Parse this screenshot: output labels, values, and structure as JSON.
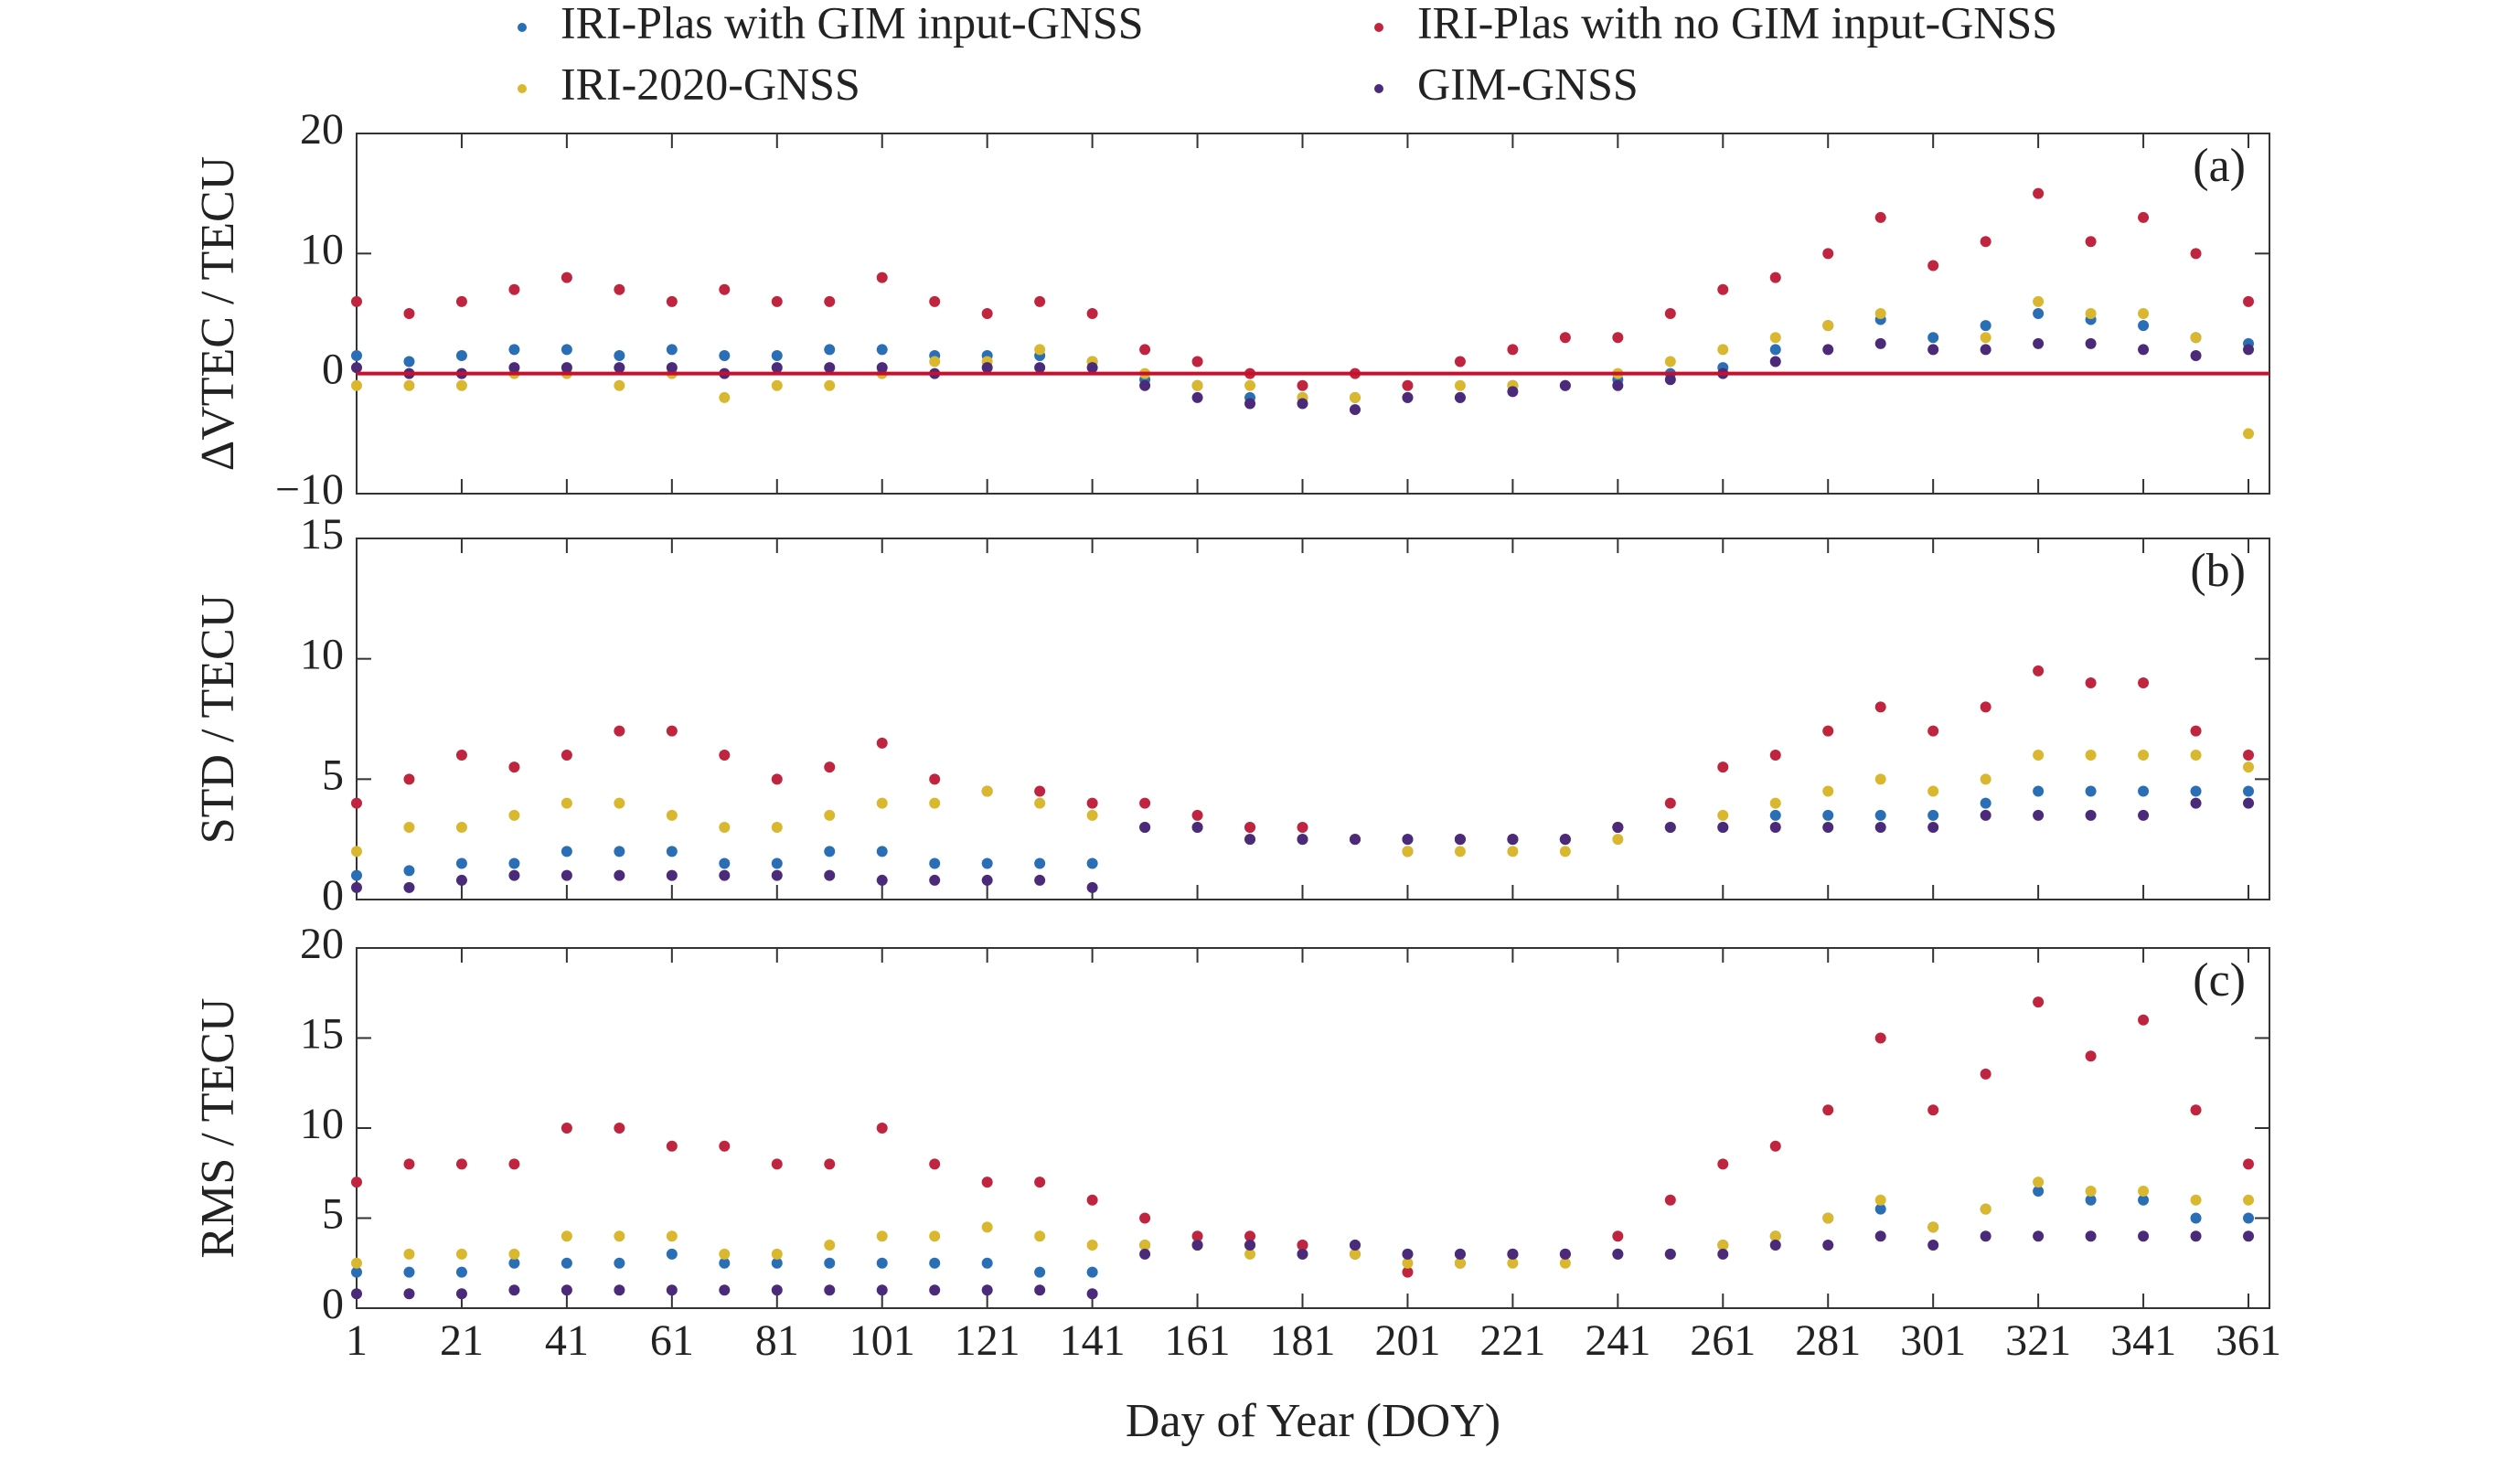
{
  "chart_data": [
    {
      "type": "scatter",
      "legend": "top",
      "annotation": "(a)",
      "ylabel": "ΔVTEC / TECU",
      "reference_line": {
        "value": 0,
        "color": "#c8102e"
      },
      "xlim": [
        1,
        365
      ],
      "ylim": [
        -10,
        20
      ],
      "yticks": [
        {
          "value": -10,
          "label": "−10"
        },
        0,
        10,
        20
      ],
      "x": [
        1,
        11,
        21,
        31,
        41,
        51,
        61,
        71,
        81,
        91,
        101,
        111,
        121,
        131,
        141,
        151,
        161,
        171,
        181,
        191,
        201,
        211,
        221,
        231,
        241,
        251,
        261,
        271,
        281,
        291,
        301,
        311,
        321,
        331,
        341,
        351,
        361
      ],
      "series": [
        {
          "name": "IRI-Plas with GIM input-GNSS",
          "color": "#2a6fb5",
          "values": [
            1.5,
            1,
            1.5,
            2,
            2,
            1.5,
            2,
            1.5,
            1.5,
            2,
            2,
            1.5,
            1.5,
            1.5,
            1,
            -0.5,
            -1,
            -2,
            -2,
            -2,
            -2,
            -2,
            -1,
            -1,
            -0.5,
            0,
            0.5,
            2,
            4,
            4.5,
            3,
            4,
            5,
            4.5,
            4,
            3,
            2.5
          ]
        },
        {
          "name": "IRI-Plas with no GIM input-GNSS",
          "color": "#c0253f",
          "values": [
            6,
            5,
            6,
            7,
            8,
            7,
            6,
            7,
            6,
            6,
            8,
            6,
            5,
            6,
            5,
            2,
            1,
            0,
            -1,
            0,
            -1,
            1,
            2,
            3,
            3,
            5,
            7,
            8,
            10,
            13,
            9,
            11,
            15,
            11,
            13,
            10,
            6
          ]
        },
        {
          "name": "IRI-2020-GNSS",
          "color": "#d9b830",
          "values": [
            -1,
            -1,
            -1,
            0,
            0,
            -1,
            0,
            -2,
            -1,
            -1,
            0,
            1,
            1,
            2,
            1,
            0,
            -1,
            -1,
            -2,
            -2,
            -2,
            -1,
            -1,
            -1,
            0,
            1,
            2,
            3,
            4,
            5,
            2,
            3,
            6,
            5,
            5,
            3,
            -5
          ]
        },
        {
          "name": "GIM-GNSS",
          "color": "#4b2a7a",
          "values": [
            0.5,
            0,
            0,
            0.5,
            0.5,
            0.5,
            0.5,
            0,
            0.5,
            0.5,
            0.5,
            0,
            0.5,
            0.5,
            0.5,
            -1,
            -2,
            -2.5,
            -2.5,
            -3,
            -2,
            -2,
            -1.5,
            -1,
            -1,
            -0.5,
            0,
            1,
            2,
            2.5,
            2,
            2,
            2.5,
            2.5,
            2,
            1.5,
            2
          ]
        }
      ]
    },
    {
      "type": "scatter",
      "annotation": "(b)",
      "ylabel": "STD / TECU",
      "xlim": [
        1,
        365
      ],
      "ylim": [
        0,
        15
      ],
      "yticks": [
        0,
        5,
        10,
        15
      ],
      "x": [
        1,
        11,
        21,
        31,
        41,
        51,
        61,
        71,
        81,
        91,
        101,
        111,
        121,
        131,
        141,
        151,
        161,
        171,
        181,
        191,
        201,
        211,
        221,
        231,
        241,
        251,
        261,
        271,
        281,
        291,
        301,
        311,
        321,
        331,
        341,
        351,
        361
      ],
      "series": [
        {
          "color": "#2a6fb5",
          "values": [
            1,
            1.2,
            1.5,
            1.5,
            2,
            2,
            2,
            1.5,
            1.5,
            2,
            2,
            1.5,
            1.5,
            1.5,
            1.5,
            3,
            3,
            3,
            2.5,
            2.5,
            2.5,
            2.5,
            2.5,
            2.5,
            3,
            3,
            3,
            3.5,
            3.5,
            3.5,
            3.5,
            4,
            4.5,
            4.5,
            4.5,
            4.5,
            4.5
          ]
        },
        {
          "color": "#c0253f",
          "values": [
            4,
            5,
            6,
            5.5,
            6,
            7,
            7,
            6,
            5,
            5.5,
            6.5,
            5,
            4.5,
            4.5,
            4,
            4,
            3.5,
            3,
            3,
            2.5,
            2,
            2.5,
            2.5,
            2.5,
            3,
            4,
            5.5,
            6,
            7,
            8,
            7,
            8,
            9.5,
            9,
            9,
            7,
            6
          ]
        },
        {
          "color": "#d9b830",
          "values": [
            2,
            3,
            3,
            3.5,
            4,
            4,
            3.5,
            3,
            3,
            3.5,
            4,
            4,
            4.5,
            4,
            3.5,
            3,
            3,
            2.5,
            2.5,
            2.5,
            2,
            2,
            2,
            2,
            2.5,
            3,
            3.5,
            4,
            4.5,
            5,
            4.5,
            5,
            6,
            6,
            6,
            6,
            5.5
          ]
        },
        {
          "color": "#4b2a7a",
          "values": [
            0.5,
            0.5,
            0.8,
            1,
            1,
            1,
            1,
            1,
            1,
            1,
            0.8,
            0.8,
            0.8,
            0.8,
            0.5,
            3,
            3,
            2.5,
            2.5,
            2.5,
            2.5,
            2.5,
            2.5,
            2.5,
            3,
            3,
            3,
            3,
            3,
            3,
            3,
            3.5,
            3.5,
            3.5,
            3.5,
            4,
            4
          ]
        }
      ]
    },
    {
      "type": "scatter",
      "annotation": "(c)",
      "ylabel": "RMS / TECU",
      "xlabel": "Day of Year (DOY)",
      "xlim": [
        1,
        365
      ],
      "ylim": [
        0,
        20
      ],
      "yticks": [
        0,
        5,
        10,
        15,
        20
      ],
      "xticks": [
        1,
        21,
        41,
        61,
        81,
        101,
        121,
        141,
        161,
        181,
        201,
        221,
        241,
        261,
        281,
        301,
        321,
        341,
        361
      ],
      "x": [
        1,
        11,
        21,
        31,
        41,
        51,
        61,
        71,
        81,
        91,
        101,
        111,
        121,
        131,
        141,
        151,
        161,
        171,
        181,
        191,
        201,
        211,
        221,
        231,
        241,
        251,
        261,
        271,
        281,
        291,
        301,
        311,
        321,
        331,
        341,
        351,
        361
      ],
      "series": [
        {
          "color": "#2a6fb5",
          "values": [
            2,
            2,
            2,
            2.5,
            2.5,
            2.5,
            3,
            2.5,
            2.5,
            2.5,
            2.5,
            2.5,
            2.5,
            2,
            2,
            3.5,
            3.5,
            3.5,
            3.5,
            3.5,
            3,
            3,
            3,
            3,
            3,
            3,
            3.5,
            4,
            5,
            5.5,
            4.5,
            5.5,
            6.5,
            6,
            6,
            5,
            5
          ]
        },
        {
          "color": "#c0253f",
          "values": [
            7,
            8,
            8,
            8,
            10,
            10,
            9,
            9,
            8,
            8,
            10,
            8,
            7,
            7,
            6,
            5,
            4,
            4,
            3.5,
            3,
            2,
            2.5,
            3,
            3,
            4,
            6,
            8,
            9,
            11,
            15,
            11,
            13,
            17,
            14,
            16,
            11,
            8
          ]
        },
        {
          "color": "#d9b830",
          "values": [
            2.5,
            3,
            3,
            3,
            4,
            4,
            4,
            3,
            3,
            3.5,
            4,
            4,
            4.5,
            4,
            3.5,
            3.5,
            3.5,
            3,
            3,
            3,
            2.5,
            2.5,
            2.5,
            2.5,
            3,
            3,
            3.5,
            4,
            5,
            6,
            4.5,
            5.5,
            7,
            6.5,
            6.5,
            6,
            6
          ]
        },
        {
          "color": "#4b2a7a",
          "values": [
            0.8,
            0.8,
            0.8,
            1,
            1,
            1,
            1,
            1,
            1,
            1,
            1,
            1,
            1,
            1,
            0.8,
            3,
            3.5,
            3.5,
            3,
            3.5,
            3,
            3,
            3,
            3,
            3,
            3,
            3,
            3.5,
            3.5,
            4,
            3.5,
            4,
            4,
            4,
            4,
            4,
            4
          ]
        }
      ]
    }
  ]
}
